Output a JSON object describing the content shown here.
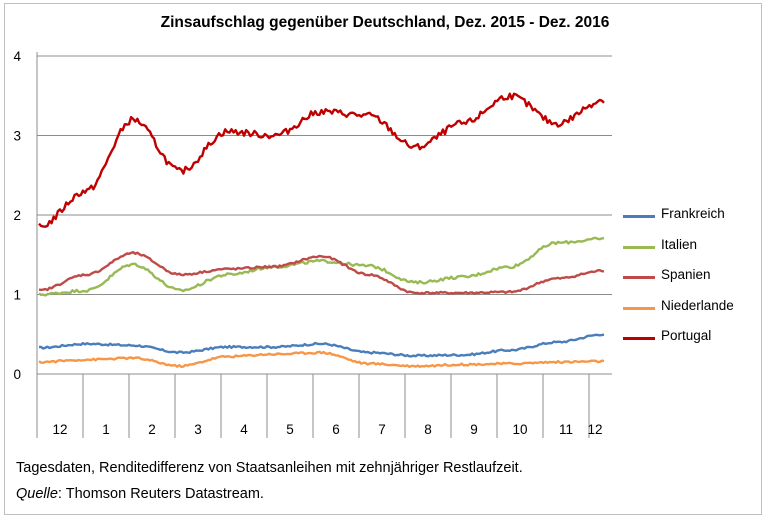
{
  "chart_data": {
    "type": "line",
    "title": "Zinsaufschlag gegenüber Deutschland, Dez. 2015 - Dez. 2016",
    "xlabel": "",
    "ylabel": "",
    "ylim": [
      0,
      4
    ],
    "yticks": [
      "0",
      "1",
      "2",
      "3",
      "4"
    ],
    "x_months": [
      "12",
      "1",
      "2",
      "3",
      "4",
      "5",
      "6",
      "7",
      "8",
      "9",
      "10",
      "11",
      "12"
    ],
    "x": [
      "2015-12",
      "2016-01",
      "2016-02",
      "2016-03",
      "2016-04",
      "2016-05",
      "2016-06",
      "2016-07",
      "2016-08",
      "2016-09",
      "2016-10",
      "2016-11",
      "2016-12"
    ],
    "grid": "horizontal",
    "legend_position": "right",
    "series": [
      {
        "name": "Frankreich",
        "color": "#4a7ebb",
        "values": [
          0.33,
          0.38,
          0.36,
          0.27,
          0.34,
          0.34,
          0.38,
          0.27,
          0.23,
          0.24,
          0.3,
          0.4,
          0.5
        ]
      },
      {
        "name": "Italien",
        "color": "#98b954",
        "values": [
          1.0,
          1.05,
          1.38,
          1.05,
          1.25,
          1.35,
          1.42,
          1.36,
          1.15,
          1.22,
          1.35,
          1.65,
          1.7
        ]
      },
      {
        "name": "Spanien",
        "color": "#be4b48",
        "values": [
          1.05,
          1.25,
          1.52,
          1.25,
          1.32,
          1.35,
          1.48,
          1.25,
          1.02,
          1.02,
          1.03,
          1.2,
          1.3
        ]
      },
      {
        "name": "Niederlande",
        "color": "#f79646",
        "values": [
          0.15,
          0.18,
          0.2,
          0.1,
          0.22,
          0.25,
          0.27,
          0.13,
          0.1,
          0.12,
          0.13,
          0.15,
          0.16
        ]
      },
      {
        "name": "Portugal",
        "color": "#c00000",
        "values": [
          1.85,
          2.3,
          3.2,
          2.55,
          3.05,
          3.0,
          3.3,
          3.25,
          2.85,
          3.15,
          3.5,
          3.15,
          3.45
        ]
      }
    ]
  },
  "footnote": {
    "line1": "Tagesdaten, Renditedifferenz  von Staatsanleihen mit zehnjähriger Restlaufzeit.",
    "source_label": "Quelle",
    "source_text": ": Thomson Reuters Datastream."
  }
}
